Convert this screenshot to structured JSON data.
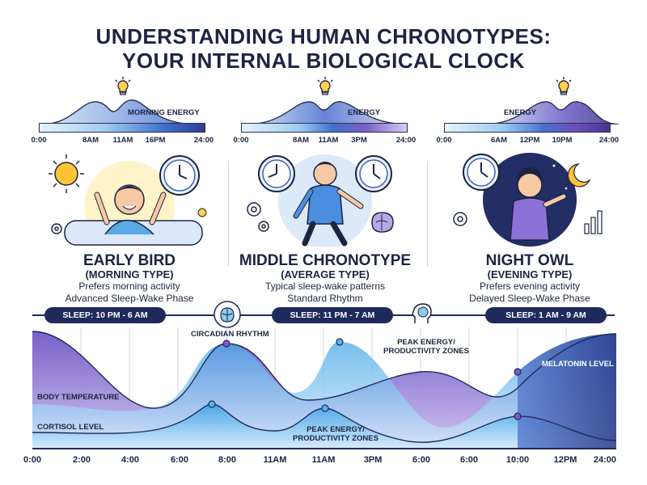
{
  "title_line1": "UNDERSTANDING HUMAN CHRONOTYPES:",
  "title_line2": "YOUR INTERNAL BIOLOGICAL CLOCK",
  "panels": [
    {
      "energy_label": "MORNING ENERGY",
      "ticks": [
        "0:00",
        "8AM",
        "11AM",
        "16PM",
        "24:00"
      ],
      "name": "EARLY BIRD",
      "type": "(MORNING TYPE)",
      "desc1": "Prefers morning activity",
      "desc2": "Advanced Sleep-Wake Phase",
      "sleep": "SLEEP: 10 PM - 6 AM"
    },
    {
      "energy_label": "ENERGY",
      "ticks": [
        "0:00",
        "8AM",
        "11AM",
        "3PM",
        "24:00"
      ],
      "name": "MIDDLE CHRONOTYPE",
      "type": "(AVERAGE TYPE)",
      "desc1": "Typical sleep-wake patterns",
      "desc2": "Standard Rhythm",
      "sleep": "SLEEP: 11 PM - 7 AM"
    },
    {
      "energy_label": "ENERGY",
      "ticks": [
        "0:00",
        "6AM",
        "12PM",
        "10PM",
        "24:00"
      ],
      "name": "NIGHT OWL",
      "type": "(EVENING TYPE)",
      "desc1": "Prefers evening activity",
      "desc2": "Delayed Sleep-Wake Phase",
      "sleep": "SLEEP: 1 AM - 9 AM"
    }
  ],
  "chart_labels": {
    "circadian": "CIRCADIAN RHYTHM",
    "peak_top_1": "PEAK ENERGY/",
    "peak_top_2": "PRODUCTIVITY ZONES",
    "melatonin": "MELATONIN LEVEL",
    "body_temp": "BODY TEMPERATURE",
    "cortisol": "CORTISOL LEVEL",
    "peak_bottom_1": "PEAK ENERGY/",
    "peak_bottom_2": "PRODUCTIVITY ZONES"
  },
  "time_axis": [
    "0:00",
    "2:00",
    "4:00",
    "6:00",
    "8:00",
    "11AM",
    "11AM",
    "3PM",
    "6:00",
    "6:00",
    "10:00",
    "12PM",
    "24:00"
  ],
  "colors": {
    "navy": "#1f2a5c",
    "light_blue": "#58b6e8",
    "purple": "#7a5cc7",
    "lavender": "#b9a6e6"
  }
}
